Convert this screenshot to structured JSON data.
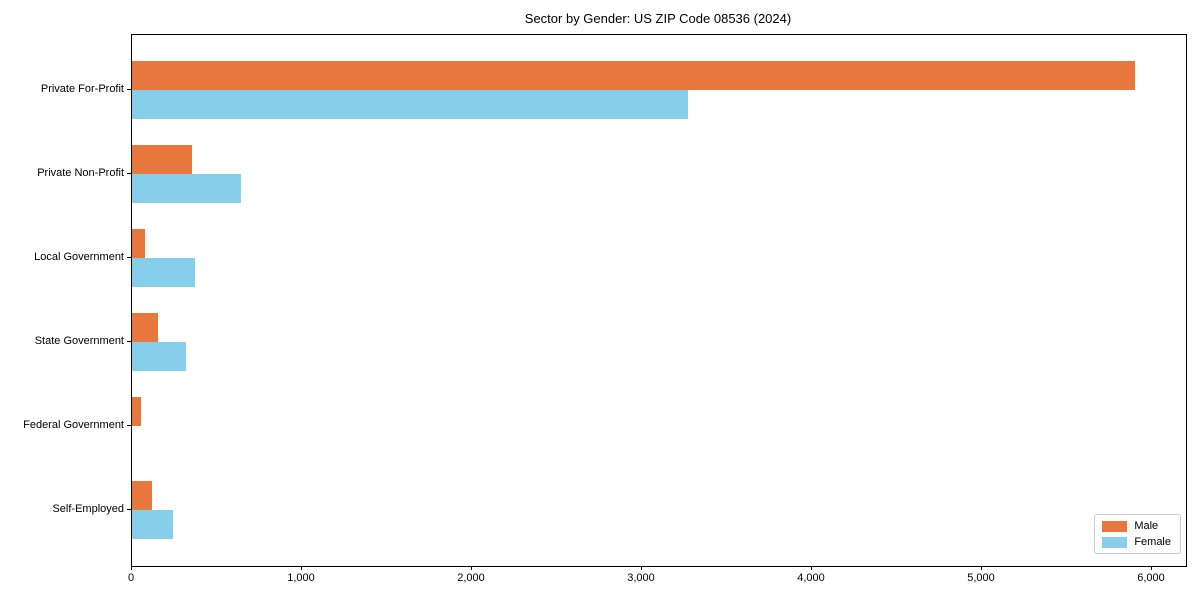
{
  "title": "Sector by Gender: US ZIP Code 08536 (2024)",
  "chart_data": {
    "type": "bar",
    "orientation": "horizontal",
    "title": "Sector by Gender: US ZIP Code 08536 (2024)",
    "categories": [
      "Private For-Profit",
      "Private Non-Profit",
      "Local Government",
      "State Government",
      "Federal Government",
      "Self-Employed"
    ],
    "series": [
      {
        "name": "Male",
        "color": "#e8773d",
        "values": [
          5900,
          350,
          75,
          155,
          55,
          115
        ]
      },
      {
        "name": "Female",
        "color": "#87ceeb",
        "values": [
          3270,
          640,
          370,
          320,
          0,
          240
        ]
      }
    ],
    "xlabel": "",
    "ylabel": "",
    "xlim": [
      0,
      6200
    ],
    "xticks": [
      0,
      1000,
      2000,
      3000,
      4000,
      5000,
      6000
    ],
    "xtick_labels": [
      "0",
      "1,000",
      "2,000",
      "3,000",
      "4,000",
      "5,000",
      "6,000"
    ],
    "grid": false,
    "legend": {
      "position": "lower right",
      "entries": [
        "Male",
        "Female"
      ]
    }
  }
}
